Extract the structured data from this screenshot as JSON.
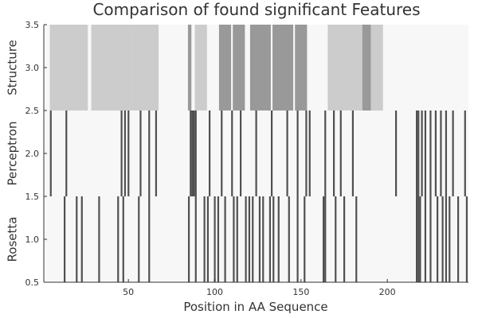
{
  "chart_data": {
    "type": "heatmap",
    "title": "Comparison of found significant Features",
    "xlabel": "Position in AA Sequence",
    "ylabel": "",
    "xlim": [
      1,
      247
    ],
    "ylim": [
      0.5,
      3.5
    ],
    "x_ticks": [
      50,
      100,
      150,
      200
    ],
    "y_ticks": [
      0.5,
      1.0,
      1.5,
      2.0,
      2.5,
      3.0,
      3.5
    ],
    "y_tick_labels": [
      "0.5",
      "1.0",
      "1.5",
      "2.0",
      "2.5",
      "3.0",
      "3.5"
    ],
    "grid": false,
    "legend": "none",
    "rows": [
      {
        "label": "Rosetta",
        "y": 1,
        "positions": [
          13,
          20,
          23,
          33,
          44,
          47,
          56,
          62,
          85,
          89,
          94,
          96,
          100,
          102,
          106,
          111,
          113,
          118,
          120,
          122,
          126,
          128,
          132,
          134,
          137,
          143,
          148,
          152,
          163,
          164,
          170,
          175,
          182,
          217,
          218,
          219,
          222,
          225,
          229,
          232,
          234,
          236,
          241,
          246
        ],
        "colors": {
          "empty": "#f7f7f7",
          "marked": "#505050"
        }
      },
      {
        "label": "Perceptron",
        "y": 2,
        "positions": [
          5,
          14,
          46,
          48,
          50,
          57,
          62,
          66,
          86,
          87,
          88,
          89,
          97,
          104,
          110,
          115,
          124,
          133,
          142,
          148,
          153,
          155,
          164,
          169,
          173,
          180,
          205,
          217,
          218,
          220,
          222,
          225,
          228,
          231,
          234,
          238,
          245
        ],
        "colors": {
          "empty": "#f7f7f7",
          "marked": "#505050"
        }
      },
      {
        "label": "Structure",
        "y": 3,
        "segments": [
          {
            "start": 5,
            "end": 26,
            "value": "light"
          },
          {
            "start": 29,
            "end": 52,
            "value": "light"
          },
          {
            "start": 53,
            "end": 67,
            "value": "light"
          },
          {
            "start": 85,
            "end": 86,
            "value": "medium"
          },
          {
            "start": 89,
            "end": 95,
            "value": "light"
          },
          {
            "start": 103,
            "end": 109,
            "value": "medium"
          },
          {
            "start": 111,
            "end": 117,
            "value": "medium"
          },
          {
            "start": 121,
            "end": 132,
            "value": "medium"
          },
          {
            "start": 134,
            "end": 145,
            "value": "medium"
          },
          {
            "start": 147,
            "end": 153,
            "value": "medium"
          },
          {
            "start": 166,
            "end": 185,
            "value": "light"
          },
          {
            "start": 186,
            "end": 190,
            "value": "medium"
          },
          {
            "start": 191,
            "end": 197,
            "value": "light"
          }
        ],
        "colors": {
          "empty": "#f7f7f7",
          "light": "#cccccc",
          "medium": "#999999"
        }
      }
    ]
  }
}
